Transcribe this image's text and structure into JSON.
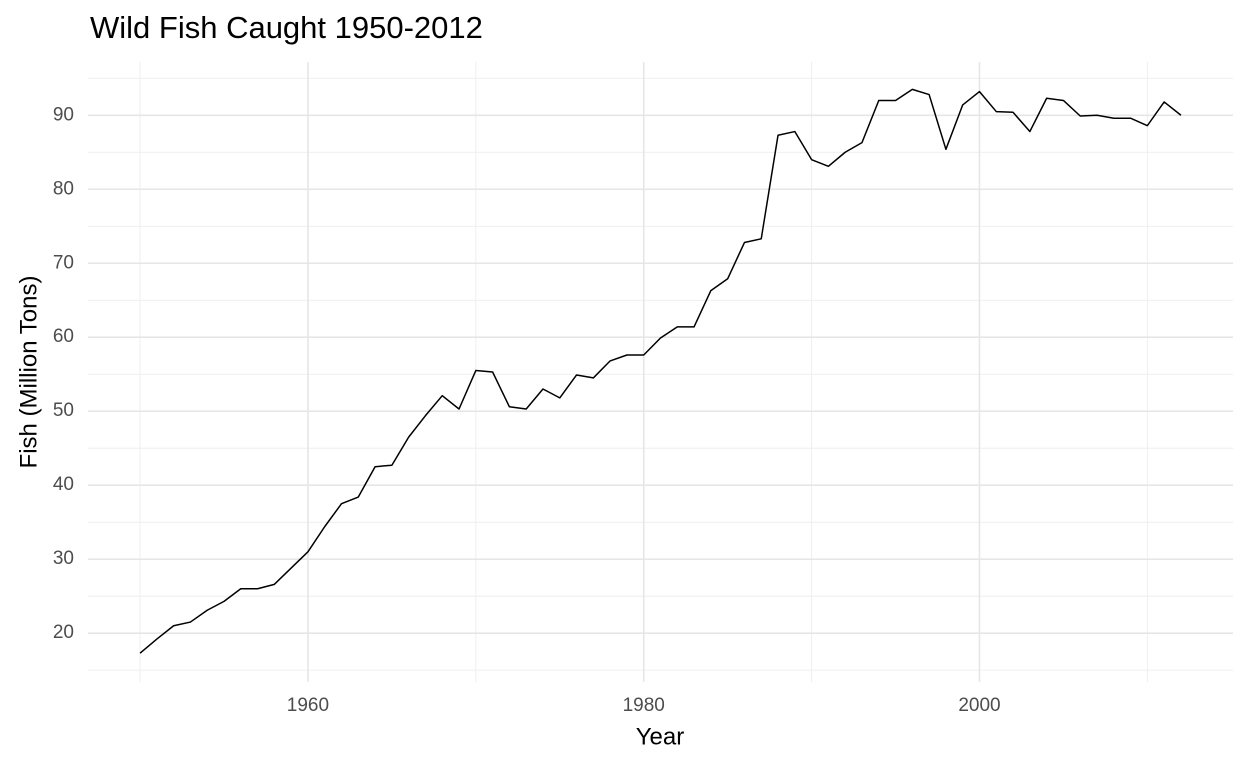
{
  "chart_data": {
    "type": "line",
    "title": "Wild Fish Caught 1950-2012",
    "x_label": "Year",
    "y_label": "Fish (Million Tons)",
    "x": [
      1950,
      1951,
      1952,
      1953,
      1954,
      1955,
      1956,
      1957,
      1958,
      1959,
      1960,
      1961,
      1962,
      1963,
      1964,
      1965,
      1966,
      1967,
      1968,
      1969,
      1970,
      1971,
      1972,
      1973,
      1974,
      1975,
      1976,
      1977,
      1978,
      1979,
      1980,
      1981,
      1982,
      1983,
      1984,
      1985,
      1986,
      1987,
      1988,
      1989,
      1990,
      1991,
      1992,
      1993,
      1994,
      1995,
      1996,
      1997,
      1998,
      1999,
      2000,
      2001,
      2002,
      2003,
      2004,
      2005,
      2006,
      2007,
      2008,
      2009,
      2010,
      2011,
      2012
    ],
    "series": [
      {
        "name": "Fish",
        "color": "#000000",
        "values": [
          17.3,
          19.2,
          21.0,
          21.5,
          23.1,
          24.3,
          26.0,
          26.0,
          26.6,
          28.8,
          31.0,
          34.4,
          37.5,
          38.4,
          42.5,
          42.7,
          46.5,
          49.4,
          52.1,
          50.3,
          55.5,
          55.3,
          50.6,
          50.3,
          53.0,
          51.8,
          54.9,
          54.5,
          56.8,
          57.6,
          57.6,
          59.9,
          61.4,
          61.4,
          66.3,
          67.9,
          72.8,
          73.3,
          87.3,
          87.8,
          84.0,
          83.1,
          85.0,
          86.3,
          92.0,
          92.0,
          93.5,
          92.8,
          85.4,
          91.4,
          93.2,
          90.5,
          90.4,
          87.8,
          92.3,
          92.0,
          89.9,
          90.0,
          89.6,
          89.6,
          88.6,
          91.8,
          90.0
        ]
      }
    ],
    "xlim": [
      1946.9,
      2015.1
    ],
    "ylim": [
      13.4,
      97.2
    ],
    "xticks": [
      1960,
      1980,
      2000
    ],
    "yticks": [
      20,
      30,
      40,
      50,
      60,
      70,
      80,
      90
    ],
    "x_minor_grid": [
      1950,
      1970,
      1990,
      2010
    ],
    "y_minor_grid": [
      15,
      25,
      35,
      45,
      55,
      65,
      75,
      85,
      95
    ],
    "grid": true
  }
}
